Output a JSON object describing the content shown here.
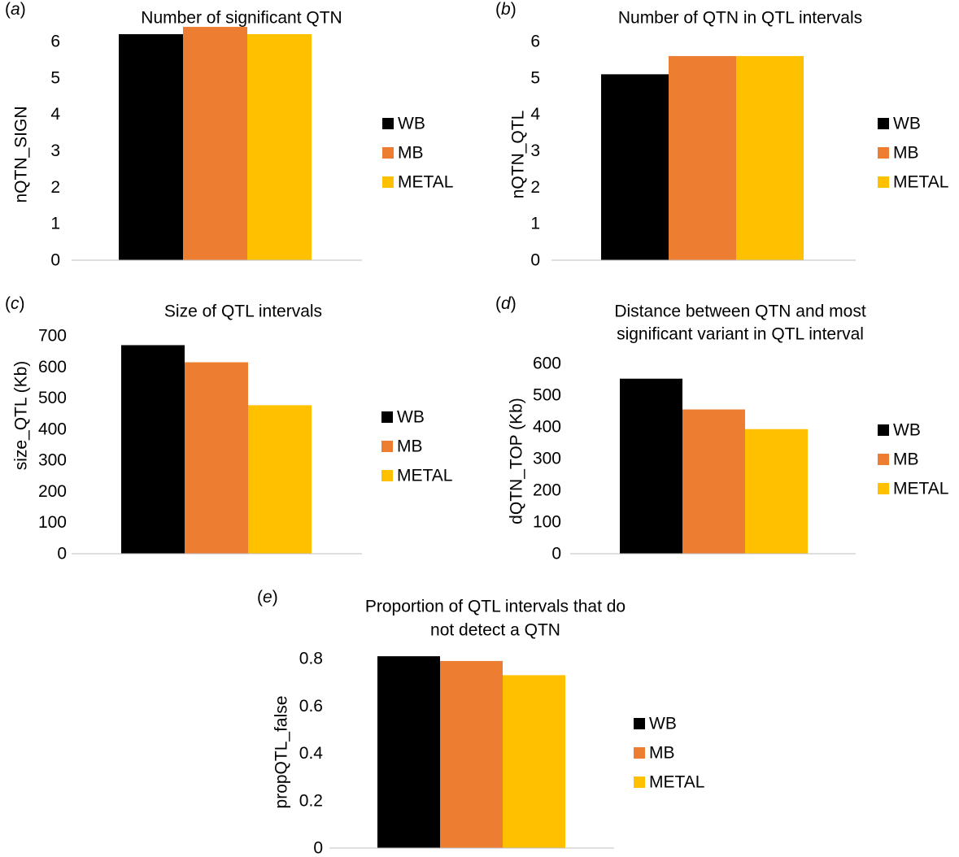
{
  "legend_labels": [
    "WB",
    "MB",
    "METAL"
  ],
  "colors": {
    "WB": "#000000",
    "MB": "#ED7D31",
    "METAL": "#FFC000",
    "axis": "#bfbfbf"
  },
  "chart_data": [
    {
      "panel": "(a)",
      "type": "bar",
      "title": [
        "Number  of significant  QTN"
      ],
      "ylabel": "nQTN_SIGN",
      "xlabel": "",
      "ylim": [
        0,
        6
      ],
      "yticks": [
        0,
        1,
        2,
        3,
        4,
        5,
        6
      ],
      "grid": false,
      "legend_position": "right",
      "series": [
        {
          "name": "WB",
          "values": [
            6.2
          ]
        },
        {
          "name": "MB",
          "values": [
            6.4
          ]
        },
        {
          "name": "METAL",
          "values": [
            6.2
          ]
        }
      ]
    },
    {
      "panel": "(b)",
      "type": "bar",
      "title": [
        "Number  of QTN  in QTL intervals"
      ],
      "ylabel": "nQTN_QTL",
      "xlabel": "",
      "ylim": [
        0,
        6
      ],
      "yticks": [
        0,
        1,
        2,
        3,
        4,
        5,
        6
      ],
      "grid": false,
      "legend_position": "right",
      "series": [
        {
          "name": "WB",
          "values": [
            5.1
          ]
        },
        {
          "name": "MB",
          "values": [
            5.6
          ]
        },
        {
          "name": "METAL",
          "values": [
            5.6
          ]
        }
      ]
    },
    {
      "panel": "(c)",
      "type": "bar",
      "title": [
        "Size of QTL intervals"
      ],
      "ylabel": "size_QTL (Kb)",
      "xlabel": "",
      "ylim": [
        0,
        700
      ],
      "yticks": [
        0,
        100,
        200,
        300,
        400,
        500,
        600,
        700
      ],
      "grid": false,
      "legend_position": "right",
      "series": [
        {
          "name": "WB",
          "values": [
            670
          ]
        },
        {
          "name": "MB",
          "values": [
            615
          ]
        },
        {
          "name": "METAL",
          "values": [
            477
          ]
        }
      ]
    },
    {
      "panel": "(d)",
      "type": "bar",
      "title": [
        "Distance  between  QTN  and  most",
        "significant  variant  in QTL interval"
      ],
      "ylabel": "dQTN_TOP (Kb)",
      "xlabel": "",
      "ylim": [
        0,
        600
      ],
      "yticks": [
        0,
        100,
        200,
        300,
        400,
        500,
        600
      ],
      "grid": false,
      "legend_position": "right",
      "series": [
        {
          "name": "WB",
          "values": [
            552
          ]
        },
        {
          "name": "MB",
          "values": [
            455
          ]
        },
        {
          "name": "METAL",
          "values": [
            393
          ]
        }
      ]
    },
    {
      "panel": "(e)",
      "type": "bar",
      "title": [
        "Proportion of QTL intervals  that do",
        "not detect  a QTN"
      ],
      "ylabel": "propQTL_false",
      "xlabel": "",
      "ylim": [
        0,
        0.8
      ],
      "yticks": [
        "0",
        "0.2",
        "0.4",
        "0.6",
        "0.8"
      ],
      "grid": false,
      "legend_position": "right",
      "series": [
        {
          "name": "WB",
          "values": [
            0.81
          ]
        },
        {
          "name": "MB",
          "values": [
            0.79
          ]
        },
        {
          "name": "METAL",
          "values": [
            0.73
          ]
        }
      ]
    }
  ]
}
